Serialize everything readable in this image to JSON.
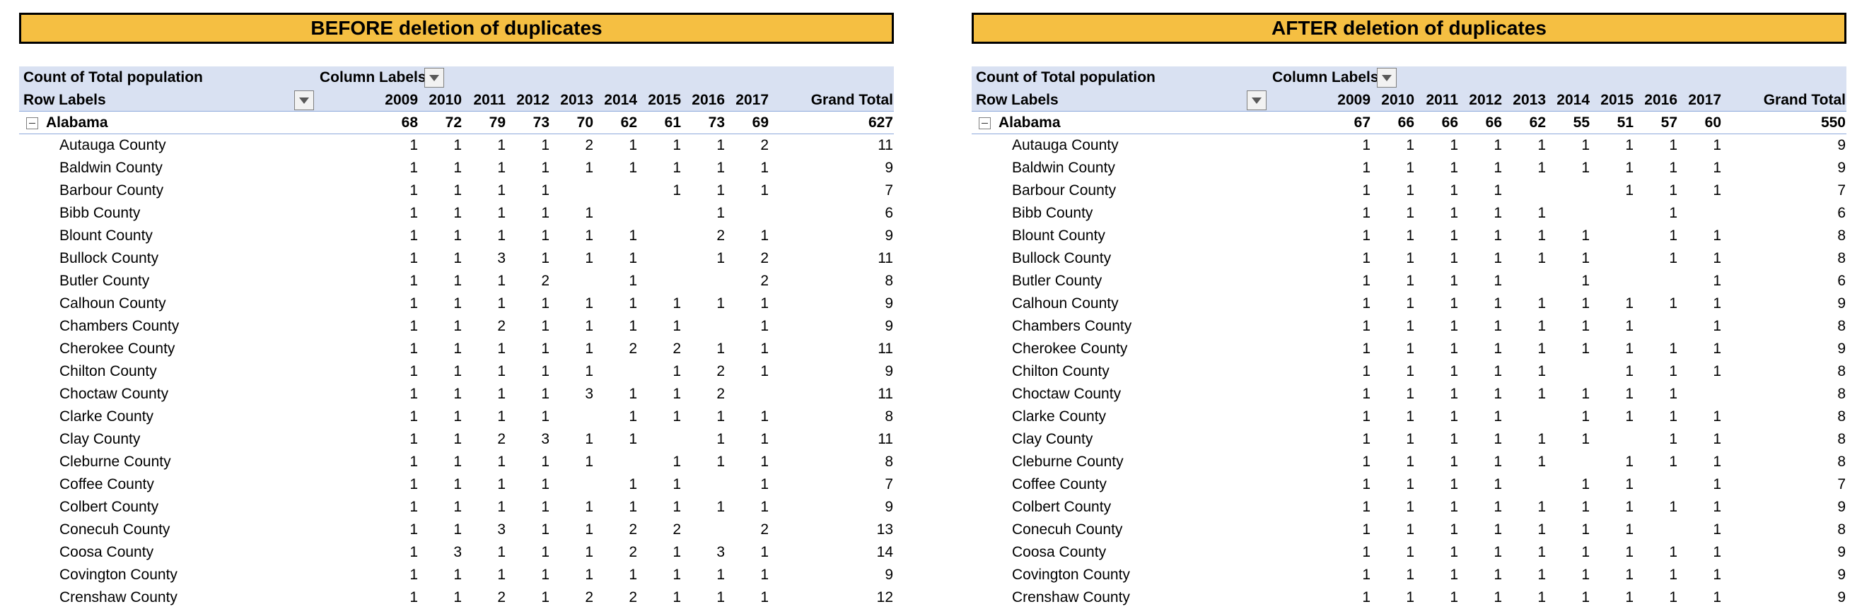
{
  "years": [
    "2009",
    "2010",
    "2011",
    "2012",
    "2013",
    "2014",
    "2015",
    "2016",
    "2017"
  ],
  "labels": {
    "count_of": "Count of Total population",
    "column_labels": "Column Labels",
    "row_labels": "Row Labels",
    "grand_total": "Grand Total",
    "group": "Alabama"
  },
  "before": {
    "title": "BEFORE deletion of duplicates",
    "group_values": [
      "68",
      "72",
      "79",
      "73",
      "70",
      "62",
      "61",
      "73",
      "69"
    ],
    "group_total": "627",
    "rows": [
      {
        "name": "Autauga County",
        "v": [
          "1",
          "1",
          "1",
          "1",
          "2",
          "1",
          "1",
          "1",
          "2"
        ],
        "t": "11"
      },
      {
        "name": "Baldwin County",
        "v": [
          "1",
          "1",
          "1",
          "1",
          "1",
          "1",
          "1",
          "1",
          "1"
        ],
        "t": "9"
      },
      {
        "name": "Barbour County",
        "v": [
          "1",
          "1",
          "1",
          "1",
          "",
          "",
          "1",
          "1",
          "1"
        ],
        "t": "7"
      },
      {
        "name": "Bibb County",
        "v": [
          "1",
          "1",
          "1",
          "1",
          "1",
          "",
          "",
          "1",
          ""
        ],
        "t": "6"
      },
      {
        "name": "Blount County",
        "v": [
          "1",
          "1",
          "1",
          "1",
          "1",
          "1",
          "",
          "2",
          "1"
        ],
        "t": "9"
      },
      {
        "name": "Bullock County",
        "v": [
          "1",
          "1",
          "3",
          "1",
          "1",
          "1",
          "",
          "1",
          "2"
        ],
        "t": "11"
      },
      {
        "name": "Butler County",
        "v": [
          "1",
          "1",
          "1",
          "2",
          "",
          "1",
          "",
          "",
          "2"
        ],
        "t": "8"
      },
      {
        "name": "Calhoun County",
        "v": [
          "1",
          "1",
          "1",
          "1",
          "1",
          "1",
          "1",
          "1",
          "1"
        ],
        "t": "9"
      },
      {
        "name": "Chambers County",
        "v": [
          "1",
          "1",
          "2",
          "1",
          "1",
          "1",
          "1",
          "",
          "1"
        ],
        "t": "9"
      },
      {
        "name": "Cherokee County",
        "v": [
          "1",
          "1",
          "1",
          "1",
          "1",
          "2",
          "2",
          "1",
          "1"
        ],
        "t": "11"
      },
      {
        "name": "Chilton County",
        "v": [
          "1",
          "1",
          "1",
          "1",
          "1",
          "",
          "1",
          "2",
          "1"
        ],
        "t": "9"
      },
      {
        "name": "Choctaw County",
        "v": [
          "1",
          "1",
          "1",
          "1",
          "3",
          "1",
          "1",
          "2",
          ""
        ],
        "t": "11"
      },
      {
        "name": "Clarke County",
        "v": [
          "1",
          "1",
          "1",
          "1",
          "",
          "1",
          "1",
          "1",
          "1"
        ],
        "t": "8"
      },
      {
        "name": "Clay County",
        "v": [
          "1",
          "1",
          "2",
          "3",
          "1",
          "1",
          "",
          "1",
          "1"
        ],
        "t": "11"
      },
      {
        "name": "Cleburne County",
        "v": [
          "1",
          "1",
          "1",
          "1",
          "1",
          "",
          "1",
          "1",
          "1"
        ],
        "t": "8"
      },
      {
        "name": "Coffee County",
        "v": [
          "1",
          "1",
          "1",
          "1",
          "",
          "1",
          "1",
          "",
          "1"
        ],
        "t": "7"
      },
      {
        "name": "Colbert County",
        "v": [
          "1",
          "1",
          "1",
          "1",
          "1",
          "1",
          "1",
          "1",
          "1"
        ],
        "t": "9"
      },
      {
        "name": "Conecuh County",
        "v": [
          "1",
          "1",
          "3",
          "1",
          "1",
          "2",
          "2",
          "",
          "2"
        ],
        "t": "13"
      },
      {
        "name": "Coosa County",
        "v": [
          "1",
          "3",
          "1",
          "1",
          "1",
          "2",
          "1",
          "3",
          "1"
        ],
        "t": "14"
      },
      {
        "name": "Covington County",
        "v": [
          "1",
          "1",
          "1",
          "1",
          "1",
          "1",
          "1",
          "1",
          "1"
        ],
        "t": "9"
      },
      {
        "name": "Crenshaw County",
        "v": [
          "1",
          "1",
          "2",
          "1",
          "2",
          "2",
          "1",
          "1",
          "1"
        ],
        "t": "12"
      }
    ]
  },
  "after": {
    "title": "AFTER deletion of duplicates",
    "group_values": [
      "67",
      "66",
      "66",
      "66",
      "62",
      "55",
      "51",
      "57",
      "60"
    ],
    "group_total": "550",
    "rows": [
      {
        "name": "Autauga County",
        "v": [
          "1",
          "1",
          "1",
          "1",
          "1",
          "1",
          "1",
          "1",
          "1"
        ],
        "t": "9"
      },
      {
        "name": "Baldwin County",
        "v": [
          "1",
          "1",
          "1",
          "1",
          "1",
          "1",
          "1",
          "1",
          "1"
        ],
        "t": "9"
      },
      {
        "name": "Barbour County",
        "v": [
          "1",
          "1",
          "1",
          "1",
          "",
          "",
          "1",
          "1",
          "1"
        ],
        "t": "7"
      },
      {
        "name": "Bibb County",
        "v": [
          "1",
          "1",
          "1",
          "1",
          "1",
          "",
          "",
          "1",
          ""
        ],
        "t": "6"
      },
      {
        "name": "Blount County",
        "v": [
          "1",
          "1",
          "1",
          "1",
          "1",
          "1",
          "",
          "1",
          "1"
        ],
        "t": "8"
      },
      {
        "name": "Bullock County",
        "v": [
          "1",
          "1",
          "1",
          "1",
          "1",
          "1",
          "",
          "1",
          "1"
        ],
        "t": "8"
      },
      {
        "name": "Butler County",
        "v": [
          "1",
          "1",
          "1",
          "1",
          "",
          "1",
          "",
          "",
          "1"
        ],
        "t": "6"
      },
      {
        "name": "Calhoun County",
        "v": [
          "1",
          "1",
          "1",
          "1",
          "1",
          "1",
          "1",
          "1",
          "1"
        ],
        "t": "9"
      },
      {
        "name": "Chambers County",
        "v": [
          "1",
          "1",
          "1",
          "1",
          "1",
          "1",
          "1",
          "",
          "1"
        ],
        "t": "8"
      },
      {
        "name": "Cherokee County",
        "v": [
          "1",
          "1",
          "1",
          "1",
          "1",
          "1",
          "1",
          "1",
          "1"
        ],
        "t": "9"
      },
      {
        "name": "Chilton County",
        "v": [
          "1",
          "1",
          "1",
          "1",
          "1",
          "",
          "1",
          "1",
          "1"
        ],
        "t": "8"
      },
      {
        "name": "Choctaw County",
        "v": [
          "1",
          "1",
          "1",
          "1",
          "1",
          "1",
          "1",
          "1",
          ""
        ],
        "t": "8"
      },
      {
        "name": "Clarke County",
        "v": [
          "1",
          "1",
          "1",
          "1",
          "",
          "1",
          "1",
          "1",
          "1"
        ],
        "t": "8"
      },
      {
        "name": "Clay County",
        "v": [
          "1",
          "1",
          "1",
          "1",
          "1",
          "1",
          "",
          "1",
          "1"
        ],
        "t": "8"
      },
      {
        "name": "Cleburne County",
        "v": [
          "1",
          "1",
          "1",
          "1",
          "1",
          "",
          "1",
          "1",
          "1"
        ],
        "t": "8"
      },
      {
        "name": "Coffee County",
        "v": [
          "1",
          "1",
          "1",
          "1",
          "",
          "1",
          "1",
          "",
          "1"
        ],
        "t": "7"
      },
      {
        "name": "Colbert County",
        "v": [
          "1",
          "1",
          "1",
          "1",
          "1",
          "1",
          "1",
          "1",
          "1"
        ],
        "t": "9"
      },
      {
        "name": "Conecuh County",
        "v": [
          "1",
          "1",
          "1",
          "1",
          "1",
          "1",
          "1",
          "",
          "1"
        ],
        "t": "8"
      },
      {
        "name": "Coosa County",
        "v": [
          "1",
          "1",
          "1",
          "1",
          "1",
          "1",
          "1",
          "1",
          "1"
        ],
        "t": "9"
      },
      {
        "name": "Covington County",
        "v": [
          "1",
          "1",
          "1",
          "1",
          "1",
          "1",
          "1",
          "1",
          "1"
        ],
        "t": "9"
      },
      {
        "name": "Crenshaw County",
        "v": [
          "1",
          "1",
          "1",
          "1",
          "1",
          "1",
          "1",
          "1",
          "1"
        ],
        "t": "9"
      }
    ]
  }
}
